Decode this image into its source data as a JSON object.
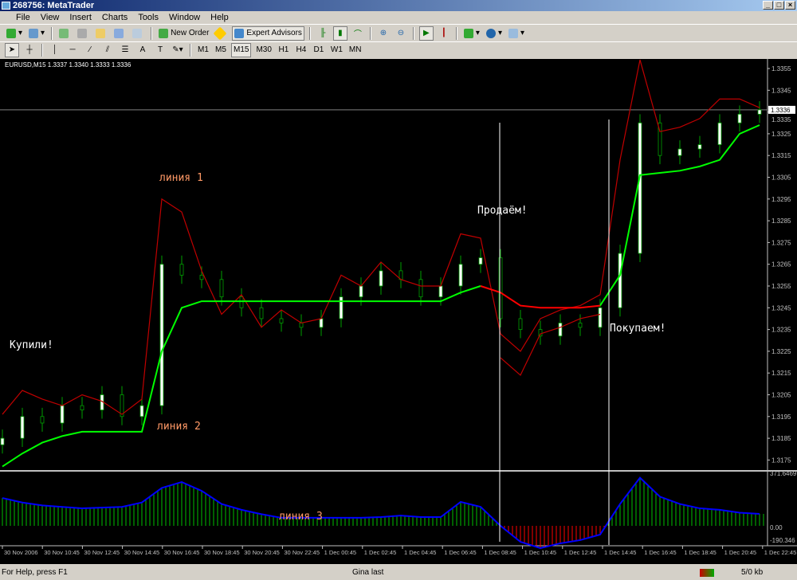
{
  "window": {
    "title": "268756: MetaTrader",
    "controls": [
      "_",
      "□",
      "×"
    ]
  },
  "menu": [
    "File",
    "View",
    "Insert",
    "Charts",
    "Tools",
    "Window",
    "Help"
  ],
  "toolbar": {
    "new_order": "New Order",
    "expert_advisors": "Expert Advisors",
    "timeframes": [
      "M1",
      "M5",
      "M15",
      "M30",
      "H1",
      "H4",
      "D1",
      "W1",
      "MN"
    ],
    "selected_timeframe": "M15",
    "text_tool": "A"
  },
  "chart": {
    "header": "EURUSD,M15  1.3337 1.3340 1.3333 1.3336",
    "current_price": "1.3336",
    "price_ticks": [
      "1.3355",
      "1.3345",
      "1.3335",
      "1.3325",
      "1.3315",
      "1.3305",
      "1.3295",
      "1.3285",
      "1.3275",
      "1.3265",
      "1.3255",
      "1.3245",
      "1.3235",
      "1.3225",
      "1.3215",
      "1.3205",
      "1.3195",
      "1.3185",
      "1.3175"
    ],
    "indicator_ticks": [
      "371.6469",
      "0.00",
      "-190.346"
    ],
    "time_labels": [
      "30 Nov 2006",
      "30 Nov 10:45",
      "30 Nov 12:45",
      "30 Nov 14:45",
      "30 Nov 16:45",
      "30 Nov 18:45",
      "30 Nov 20:45",
      "30 Nov 22:45",
      "1 Dec 00:45",
      "1 Dec 02:45",
      "1 Dec 04:45",
      "1 Dec 06:45",
      "1 Dec 08:45",
      "1 Dec 10:45",
      "1 Dec 12:45",
      "1 Dec 14:45",
      "1 Dec 16:45",
      "1 Dec 18:45",
      "1 Dec 20:45",
      "1 Dec 22:45"
    ],
    "annotations": {
      "line1": "линия 1",
      "line2": "линия 2",
      "line3": "линия 3",
      "bought": "Купили!",
      "sell": "Продаём!",
      "buy": "Покупаем!"
    },
    "colors": {
      "background": "#000000",
      "candle_bull": "#ffffff",
      "candle_bear": "#000000",
      "candle_wick": "#00a000",
      "upper_band": "#c00000",
      "stop_up": "#00ff00",
      "stop_down": "#ff0000",
      "hist_pos": "#00c000",
      "hist_neg": "#ff0000",
      "hist_line": "#0000ff",
      "annotation_orange": "#ff9966",
      "annotation_white": "#ffffff"
    }
  },
  "chart_data": {
    "type": "line",
    "symbol": "EURUSD",
    "timeframe": "M15",
    "ylim": [
      1.317,
      1.336
    ],
    "indicator_ylim": [
      -190.346,
      371.6469
    ],
    "times": [
      "30 Nov 08:45",
      "30 Nov 09:45",
      "30 Nov 10:45",
      "30 Nov 11:45",
      "30 Nov 12:45",
      "30 Nov 13:45",
      "30 Nov 14:45",
      "30 Nov 15:45",
      "30 Nov 16:45",
      "30 Nov 17:45",
      "30 Nov 18:45",
      "30 Nov 19:45",
      "30 Nov 20:45",
      "30 Nov 21:45",
      "30 Nov 22:45",
      "30 Nov 23:45",
      "1 Dec 00:45",
      "1 Dec 01:45",
      "1 Dec 02:45",
      "1 Dec 03:45",
      "1 Dec 04:45",
      "1 Dec 05:45",
      "1 Dec 06:45",
      "1 Dec 07:45",
      "1 Dec 08:45",
      "1 Dec 09:45",
      "1 Dec 10:45",
      "1 Dec 11:45",
      "1 Dec 12:45",
      "1 Dec 13:45",
      "1 Dec 14:45",
      "1 Dec 15:45",
      "1 Dec 16:45",
      "1 Dec 17:45",
      "1 Dec 18:45",
      "1 Dec 19:45",
      "1 Dec 20:45",
      "1 Dec 21:45",
      "1 Dec 22:45"
    ],
    "close": [
      1.3185,
      1.3195,
      1.3192,
      1.32,
      1.3198,
      1.3205,
      1.3195,
      1.32,
      1.3265,
      1.326,
      1.3258,
      1.325,
      1.3245,
      1.324,
      1.3238,
      1.3236,
      1.324,
      1.325,
      1.3255,
      1.3262,
      1.3258,
      1.325,
      1.3255,
      1.3265,
      1.3268,
      1.324,
      1.3235,
      1.3232,
      1.3238,
      1.3236,
      1.3245,
      1.327,
      1.333,
      1.3315,
      1.3318,
      1.332,
      1.333,
      1.3334,
      1.3336
    ],
    "upper_band": [
      1.3196,
      1.3207,
      1.3203,
      1.32,
      1.3205,
      1.3202,
      1.3196,
      1.3203,
      1.3295,
      1.3289,
      1.3262,
      1.3242,
      1.3251,
      1.3236,
      1.3244,
      1.3238,
      1.324,
      1.326,
      1.3255,
      1.3266,
      1.3258,
      1.3255,
      1.3255,
      1.3279,
      1.3277,
      1.3233,
      1.3225,
      1.324,
      1.3244,
      1.3246,
      1.3251,
      1.3313,
      1.3359,
      1.3326,
      1.3328,
      1.3332,
      1.3341,
      1.3341,
      1.3337
    ],
    "lower_band": [
      null,
      null,
      null,
      null,
      null,
      null,
      null,
      null,
      null,
      null,
      null,
      null,
      null,
      null,
      null,
      null,
      null,
      null,
      null,
      null,
      null,
      null,
      null,
      null,
      null,
      1.3222,
      1.3214,
      1.3233,
      1.3236,
      1.324,
      1.3242,
      null,
      null,
      null,
      null,
      null,
      null,
      null,
      null
    ],
    "stop_up": [
      1.3172,
      1.3178,
      1.3183,
      1.3186,
      1.3188,
      1.3188,
      1.3188,
      1.3188,
      1.3225,
      1.3245,
      1.3248,
      1.3248,
      1.3248,
      1.3248,
      1.3248,
      1.3248,
      1.3248,
      1.3248,
      1.3248,
      1.3248,
      1.3248,
      1.3248,
      1.3248,
      1.3252,
      1.3255,
      null,
      null,
      null,
      null,
      null,
      1.3246,
      1.326,
      1.3306,
      1.3307,
      1.3308,
      1.331,
      1.3313,
      1.3325,
      1.3329
    ],
    "stop_down": [
      null,
      null,
      null,
      null,
      null,
      null,
      null,
      null,
      null,
      null,
      null,
      null,
      null,
      null,
      null,
      null,
      null,
      null,
      null,
      null,
      null,
      null,
      null,
      null,
      1.3255,
      1.3252,
      1.3246,
      1.3245,
      1.3245,
      1.3245,
      1.3246,
      null,
      null,
      null,
      null,
      null,
      null,
      null,
      null
    ],
    "histogram": [
      191,
      160,
      140,
      130,
      120,
      125,
      130,
      160,
      260,
      300,
      240,
      150,
      110,
      80,
      55,
      55,
      55,
      55,
      55,
      60,
      70,
      60,
      60,
      164,
      130,
      0,
      -110,
      -153,
      -120,
      -98,
      -60,
      150,
      330,
      200,
      150,
      120,
      110,
      90,
      82
    ]
  },
  "status": {
    "help": "For Help, press F1",
    "profile": "Gina last",
    "traffic": "5/0 kb"
  }
}
